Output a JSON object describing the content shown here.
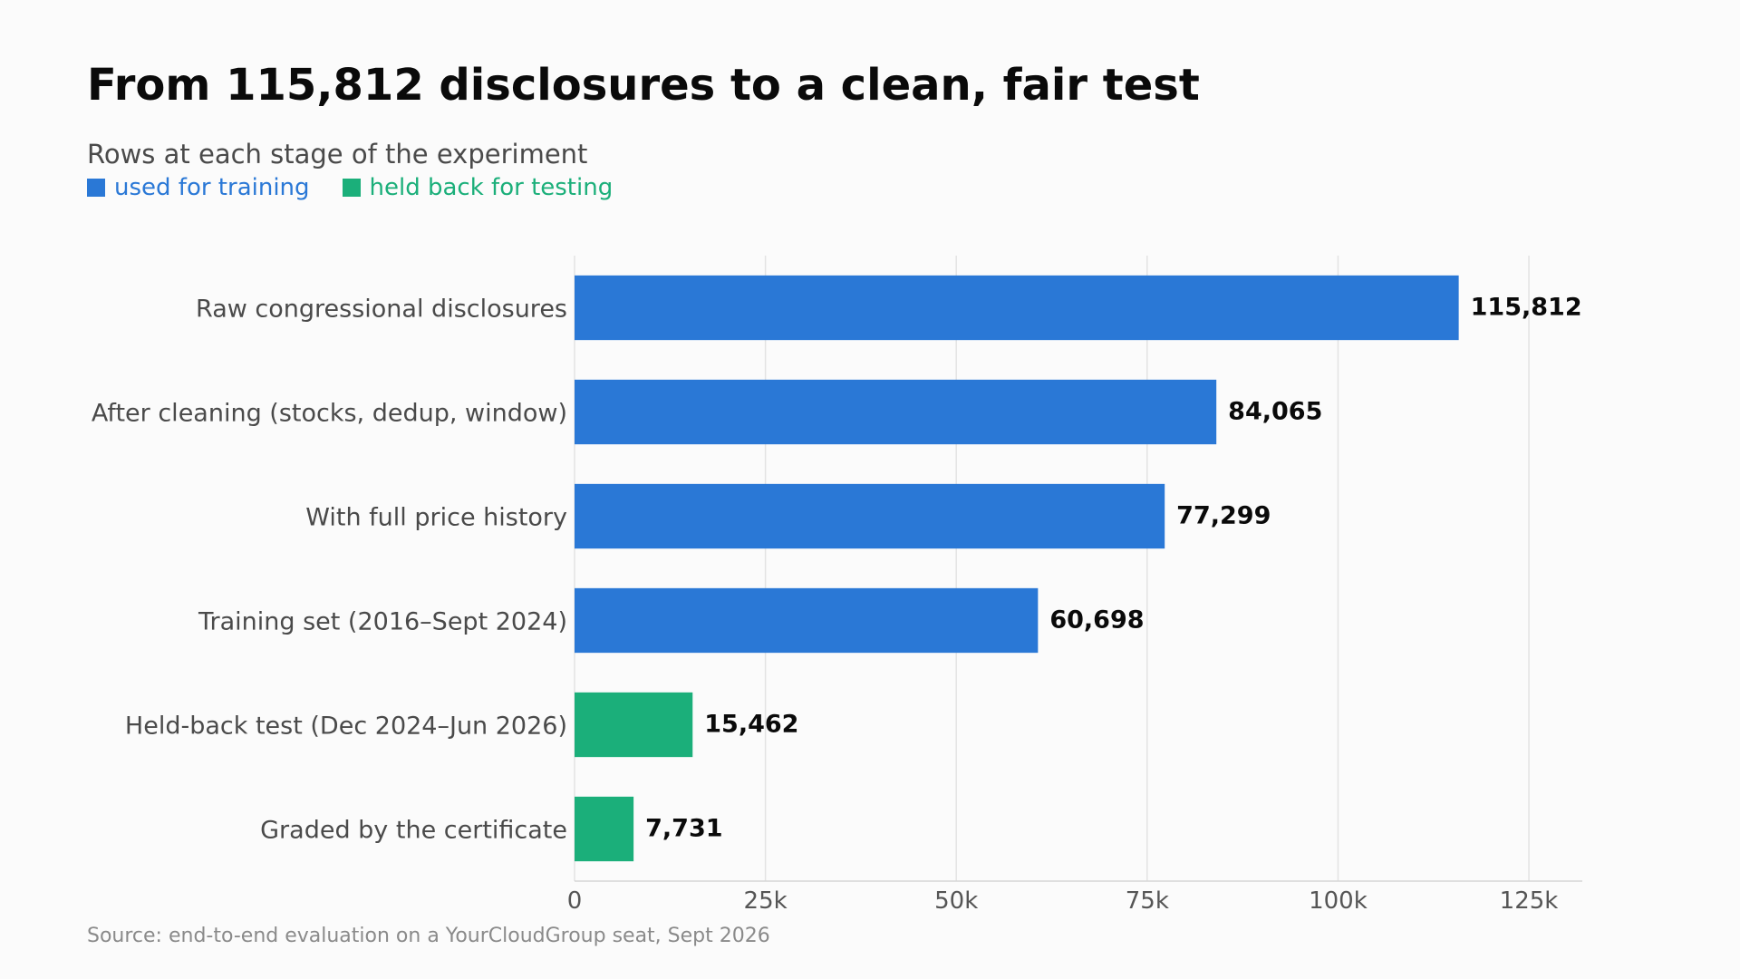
{
  "chart_data": {
    "type": "bar",
    "orientation": "horizontal",
    "title": "From 115,812 disclosures to a clean, fair test",
    "subtitle": "Rows at each stage of the experiment",
    "categories": [
      "Raw congressional disclosures",
      "After cleaning (stocks, dedup, window)",
      "With full price history",
      "Training set (2016–Sept 2024)",
      "Held-back test (Dec 2024–Jun 2026)",
      "Graded by the certificate"
    ],
    "values": [
      115812,
      84065,
      77299,
      60698,
      15462,
      7731
    ],
    "value_labels": [
      "115,812",
      "84,065",
      "77,299",
      "60,698",
      "15,462",
      "7,731"
    ],
    "groups": [
      "training",
      "training",
      "training",
      "training",
      "testing",
      "testing"
    ],
    "legend": [
      {
        "key": "training",
        "label": "used for training",
        "color": "#2a78d6"
      },
      {
        "key": "testing",
        "label": "held back for testing",
        "color": "#1baf7a"
      }
    ],
    "legend_swatch": "■",
    "legend_placement": "top-left",
    "xlim": [
      0,
      132000
    ],
    "xticks": [
      0,
      25000,
      50000,
      75000,
      100000,
      125000
    ],
    "xtick_labels": [
      "0",
      "25k",
      "50k",
      "75k",
      "100k",
      "125k"
    ],
    "xlabel": "",
    "ylabel": "",
    "grid": true
  },
  "source": "Source: end-to-end evaluation on a YourCloudGroup seat, Sept 2026"
}
